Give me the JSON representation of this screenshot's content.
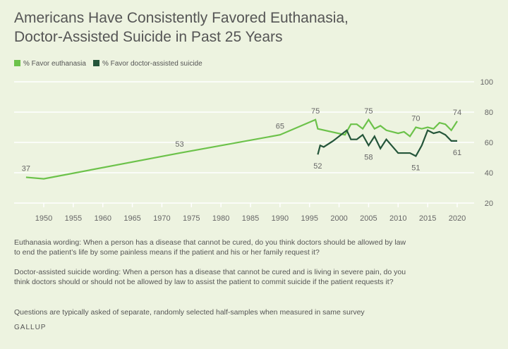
{
  "title": "Americans Have Consistently Favored Euthanasia, Doctor-Assisted Suicide in Past 25 Years",
  "title_lines": [
    "Americans Have Consistently Favored Euthanasia,",
    "Doctor-Assisted Suicide in Past 25 Years"
  ],
  "notes": [
    "Euthanasia wording: When a person has a disease that cannot be cured, do you think doctors should be allowed by law to end the patient’s life by some painless means if the patient and his or her family request it?",
    "Doctor-assisted suicide wording: When a person has a disease that cannot be cured and is living in severe pain, do you think doctors should or should not be allowed by law to assist the patient to commit suicide if the patient requests it?",
    "Questions are typically asked of separate, randomly selected half-samples when measured in same survey"
  ],
  "source": "GALLUP",
  "chart_data": {
    "type": "line",
    "ylim": [
      20,
      100
    ],
    "yticks": [
      20,
      40,
      60,
      80,
      100
    ],
    "xlim": [
      1946,
      2024
    ],
    "xticks": [
      1950,
      1955,
      1960,
      1965,
      1970,
      1975,
      1980,
      1985,
      1990,
      1995,
      2000,
      2005,
      2010,
      2015,
      2020
    ],
    "grid": true,
    "legend": "top-left",
    "series": [
      {
        "name": "% Favor euthanasia",
        "color": "#6cc24a",
        "x": [
          1947,
          1950,
          1973,
          1990,
          1996,
          1996.4,
          2001,
          2002,
          2003,
          2004,
          2005,
          2006,
          2007,
          2008,
          2010,
          2011,
          2012,
          2013,
          2014,
          2015,
          2016,
          2017,
          2018,
          2019,
          2020
        ],
        "y": [
          37,
          36,
          53,
          65,
          75,
          69,
          65,
          72,
          72,
          69,
          75,
          69,
          71,
          68,
          66,
          67,
          64,
          70,
          69,
          70,
          69,
          73,
          72,
          68,
          74
        ],
        "labels": [
          {
            "x": 1947,
            "y": 37
          },
          {
            "x": 1973,
            "y": 53
          },
          {
            "x": 1990,
            "y": 65
          },
          {
            "x": 1996,
            "y": 75
          },
          {
            "x": 2005,
            "y": 75
          },
          {
            "x": 2013,
            "y": 70
          },
          {
            "x": 2020,
            "y": 74
          }
        ]
      },
      {
        "name": "% Favor doctor-assisted suicide",
        "color": "#24553a",
        "x": [
          1996.4,
          1996.8,
          1997.4,
          1999,
          2001.3,
          2002,
          2003,
          2004,
          2005,
          2006,
          2007,
          2008,
          2010,
          2011,
          2012,
          2013,
          2014,
          2015,
          2016,
          2017,
          2018,
          2019,
          2020
        ],
        "y": [
          52,
          58,
          57,
          61,
          68,
          62,
          62,
          65,
          58,
          64,
          56,
          62,
          53,
          53,
          53,
          51,
          58,
          68,
          66,
          67,
          65,
          61,
          61
        ],
        "labels": [
          {
            "x": 1996.4,
            "y": 52
          },
          {
            "x": 2005,
            "y": 58
          },
          {
            "x": 2013,
            "y": 51
          },
          {
            "x": 2020,
            "y": 61
          }
        ]
      }
    ]
  }
}
